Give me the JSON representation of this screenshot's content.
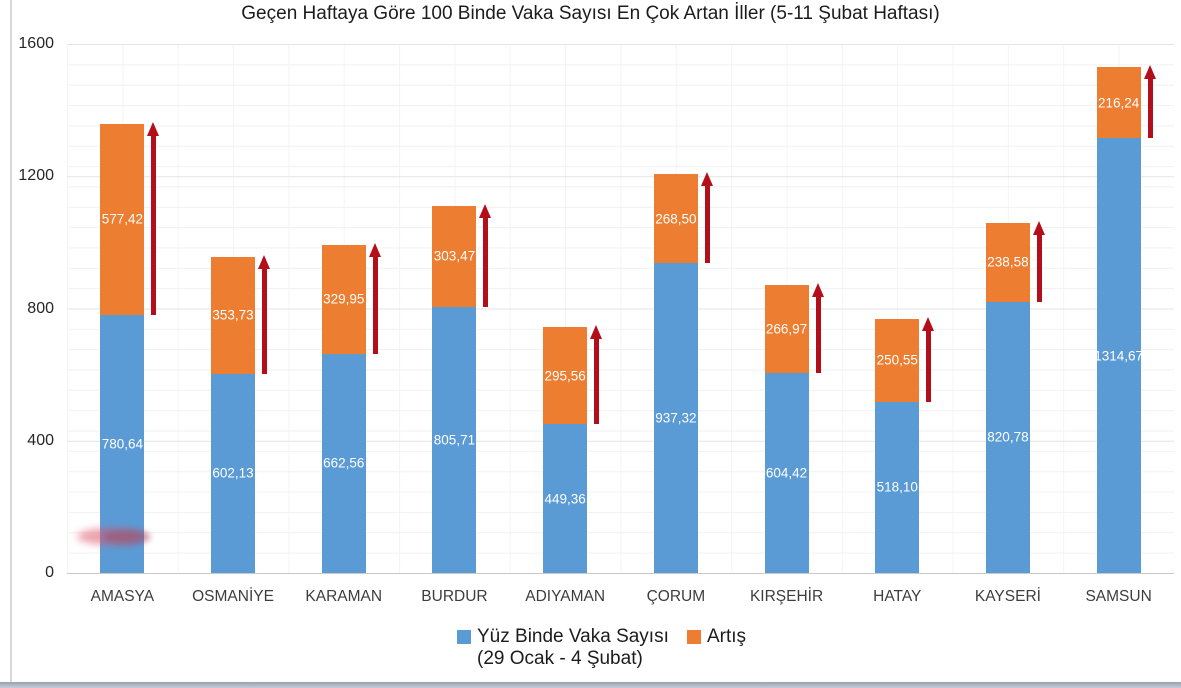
{
  "title": "Geçen Haftaya Göre 100 Binde Vaka Sayısı En Çok Artan İller (5-11 Şubat Haftası)",
  "colors": {
    "series_blue": "#5B9BD5",
    "series_orange": "#ED7D31",
    "arrow_red": "#B30F1B",
    "value_label": "#FFFFFF"
  },
  "chart_data": {
    "type": "bar",
    "stacked": true,
    "title": "Geçen Haftaya Göre 100 Binde Vaka Sayısı En Çok Artan İller (5-11 Şubat Haftası)",
    "categories": [
      "AMASYA",
      "OSMANİYE",
      "KARAMAN",
      "BURDUR",
      "ADIYAMAN",
      "ÇORUM",
      "KIRŞEHİR",
      "HATAY",
      "KAYSERİ",
      "SAMSUN"
    ],
    "series": [
      {
        "name": "Yüz Binde Vaka Sayısı (29 Ocak - 4 Şubat)",
        "color": "#5B9BD5",
        "values": [
          780.64,
          602.13,
          662.56,
          805.71,
          449.36,
          937.32,
          604.42,
          518.1,
          820.78,
          1314.67
        ],
        "labels": [
          "780,64",
          "602,13",
          "662,56",
          "805,71",
          "449,36",
          "937,32",
          "604,42",
          "518,10",
          "820,78",
          "1314,67"
        ]
      },
      {
        "name": "Artış",
        "color": "#ED7D31",
        "values": [
          577.42,
          353.73,
          329.95,
          303.47,
          295.56,
          268.5,
          266.97,
          250.55,
          238.58,
          216.24
        ],
        "labels": [
          "577,42",
          "353,73",
          "329,95",
          "303,47",
          "295,56",
          "268,50",
          "266,97",
          "250,55",
          "238,58",
          "216,24"
        ]
      }
    ],
    "ylim": [
      0,
      1600
    ],
    "y_ticks": [
      "0",
      "400",
      "800",
      "1200",
      "1600"
    ],
    "grid": true,
    "legend_position": "bottom",
    "increase_arrows_per_bar": true,
    "legend": [
      {
        "label": "Yüz Binde Vaka Sayısı",
        "sublabel": "(29 Ocak - 4 Şubat)",
        "color": "#5B9BD5"
      },
      {
        "label": "Artış",
        "sublabel": "",
        "color": "#ED7D31"
      }
    ]
  }
}
